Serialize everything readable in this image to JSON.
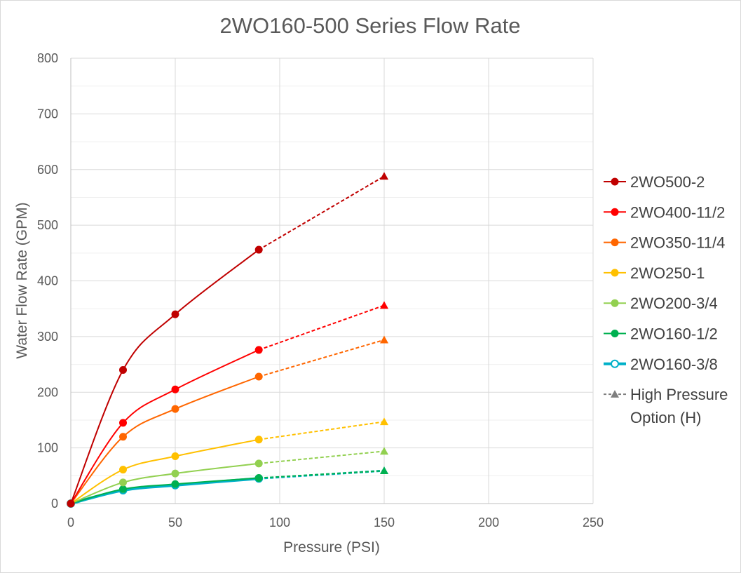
{
  "chart_data": {
    "type": "line",
    "title": "2WO160-500 Series Flow Rate",
    "xlabel": "Pressure (PSI)",
    "ylabel": "Water Flow Rate (GPM)",
    "xlim": [
      0,
      250
    ],
    "ylim": [
      0,
      800
    ],
    "x_ticks": [
      "0",
      "50",
      "100",
      "150",
      "200",
      "250"
    ],
    "y_ticks": [
      "0",
      "100",
      "200",
      "300",
      "400",
      "500",
      "600",
      "700",
      "800"
    ],
    "grid": true,
    "legend_position": "right",
    "series": [
      {
        "name": "2WO500-2",
        "color": "#c00000",
        "x": [
          0,
          25,
          50,
          90
        ],
        "y": [
          0,
          240,
          340,
          456
        ],
        "hp_x": [
          90,
          150
        ],
        "hp_y": [
          456,
          588
        ]
      },
      {
        "name": "2WO400-11/2",
        "color": "#ff0000",
        "x": [
          0,
          25,
          50,
          90
        ],
        "y": [
          0,
          145,
          205,
          276
        ],
        "hp_x": [
          90,
          150
        ],
        "hp_y": [
          276,
          356
        ]
      },
      {
        "name": "2WO350-11/4",
        "color": "#ff6600",
        "x": [
          0,
          25,
          50,
          90
        ],
        "y": [
          0,
          120,
          170,
          228
        ],
        "hp_x": [
          90,
          150
        ],
        "hp_y": [
          228,
          294
        ]
      },
      {
        "name": "2WO250-1",
        "color": "#ffc000",
        "x": [
          0,
          25,
          50,
          90
        ],
        "y": [
          0,
          61,
          85,
          115
        ],
        "hp_x": [
          90,
          150
        ],
        "hp_y": [
          115,
          147
        ]
      },
      {
        "name": "2WO200-3/4",
        "color": "#92d050",
        "x": [
          0,
          25,
          50,
          90
        ],
        "y": [
          0,
          38,
          54,
          72
        ],
        "hp_x": [
          90,
          150
        ],
        "hp_y": [
          72,
          94
        ]
      },
      {
        "name": "2WO160-1/2",
        "color": "#00b050",
        "x": [
          0,
          25,
          50,
          90
        ],
        "y": [
          0,
          26,
          35,
          46
        ],
        "hp_x": [
          90,
          150
        ],
        "hp_y": [
          46,
          59
        ]
      },
      {
        "name": "2WO160-3/8",
        "color": "#00b0c8",
        "x": [
          0,
          25,
          50,
          90
        ],
        "y": [
          0,
          24,
          33,
          45
        ],
        "hp_x": [
          90,
          150
        ],
        "hp_y": [
          45,
          59
        ]
      }
    ],
    "legend_extra": {
      "label_line1": "High Pressure",
      "label_line2": "Option (H)",
      "color": "#7f7f7f"
    }
  }
}
